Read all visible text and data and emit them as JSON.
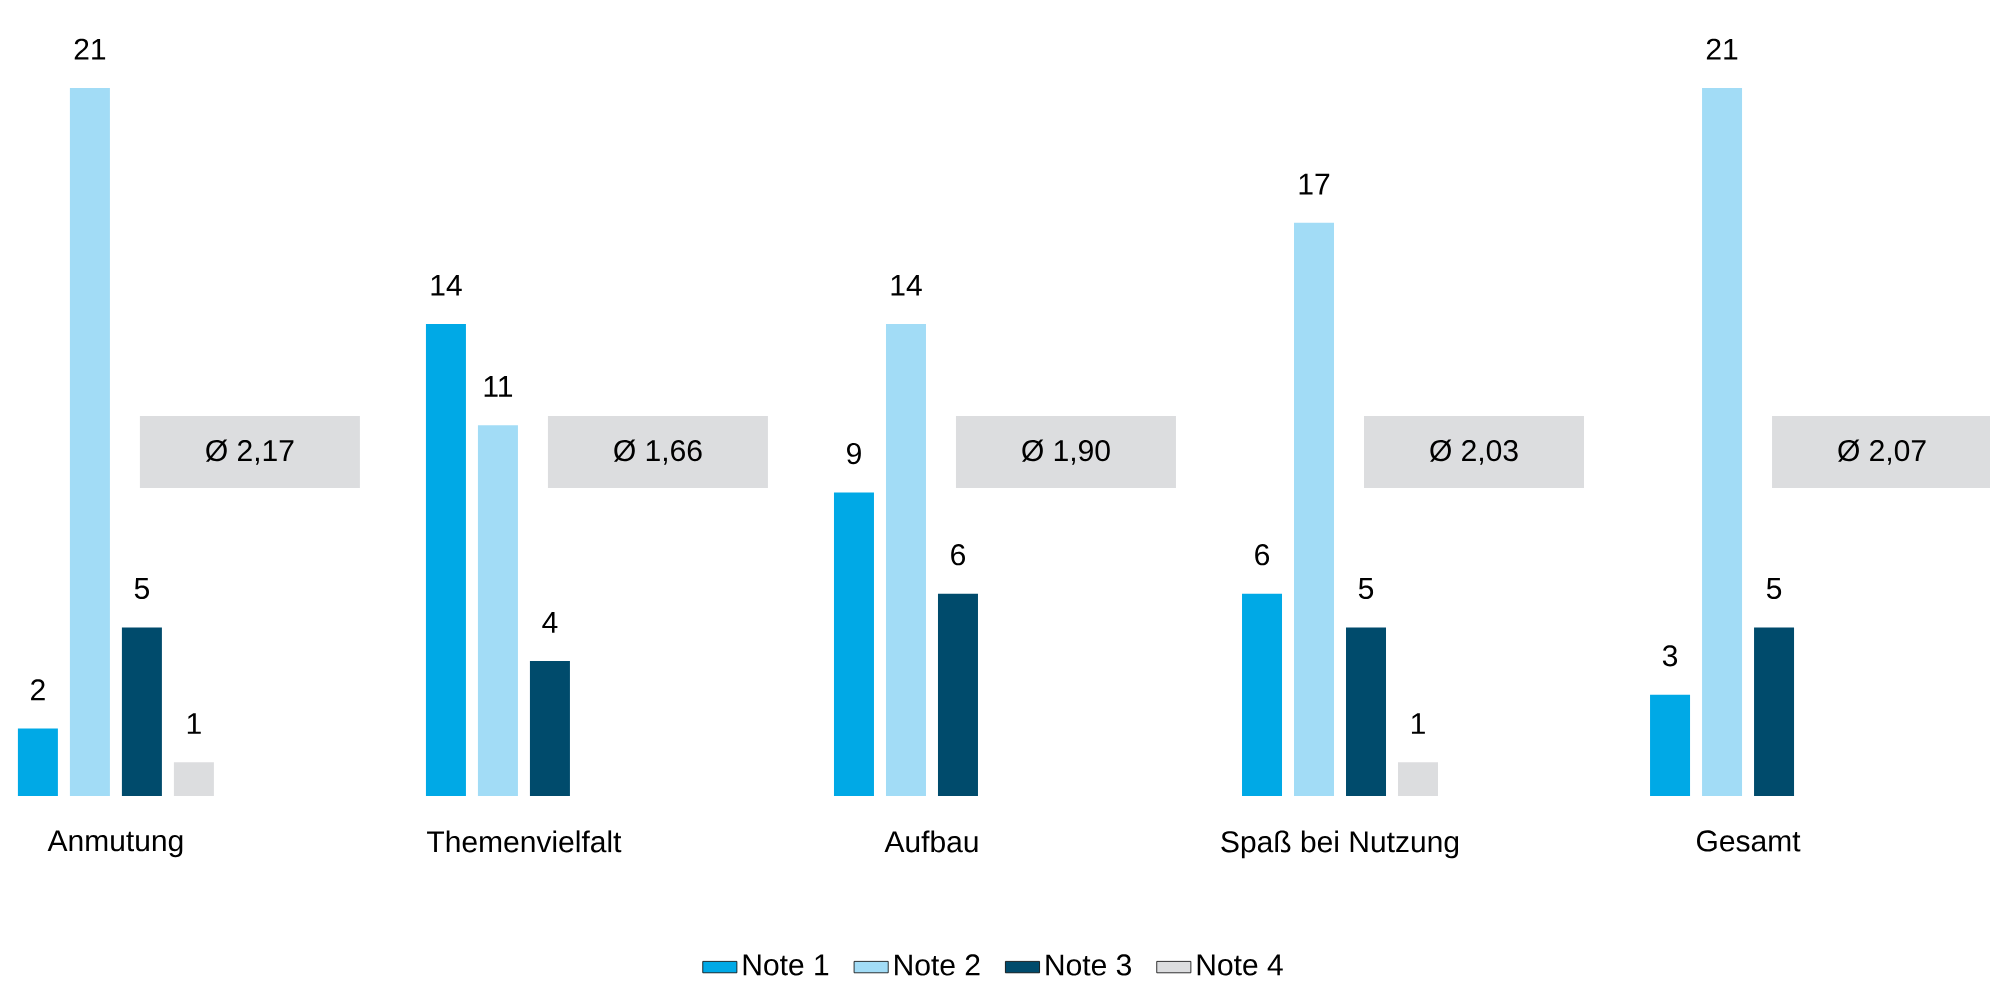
{
  "chart_data": {
    "type": "bar",
    "categories": [
      "Anmutung",
      "Themenvielfalt",
      "Aufbau",
      "Spaß bei Nutzung",
      "Gesamt"
    ],
    "series": [
      {
        "name": "Note 1",
        "color": "#00a9e6",
        "values": [
          2,
          14,
          9,
          6,
          3
        ]
      },
      {
        "name": "Note 2",
        "color": "#a2dcf6",
        "values": [
          21,
          11,
          14,
          17,
          21
        ]
      },
      {
        "name": "Note 3",
        "color": "#004b6c",
        "values": [
          5,
          4,
          6,
          5,
          5
        ]
      },
      {
        "name": "Note 4",
        "color": "#dcdddf",
        "values": [
          1,
          null,
          null,
          1,
          null
        ]
      }
    ],
    "annotations": [
      "Ø 2,17",
      "Ø 1,66",
      "Ø 1,90",
      "Ø 2,03",
      "Ø 2,07"
    ],
    "data_labels": true,
    "legend": "bottom"
  }
}
